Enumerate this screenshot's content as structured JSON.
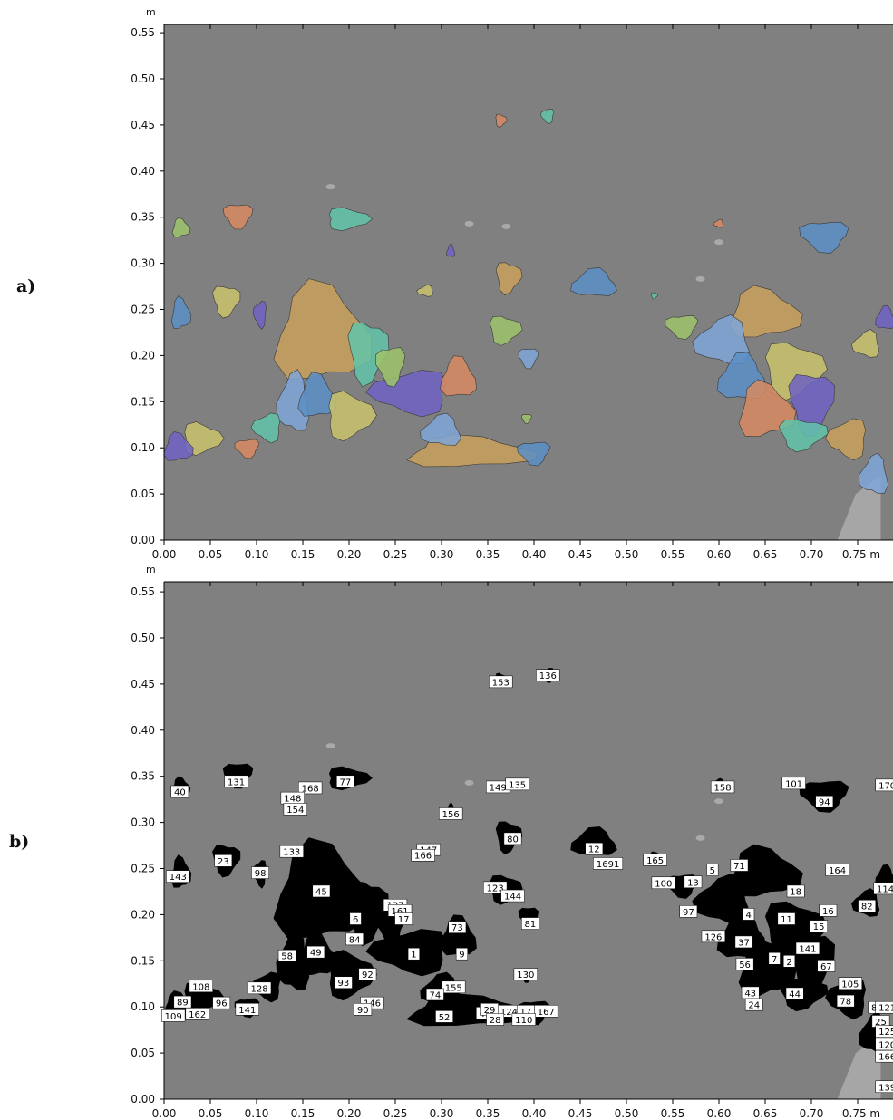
{
  "panels": [
    {
      "label": "a)",
      "unit": "m",
      "x_ticks": [
        "0.00",
        "0.05",
        "0.10",
        "0.15",
        "0.20",
        "0.25",
        "0.30",
        "0.35",
        "0.40",
        "0.45",
        "0.50",
        "0.55",
        "0.60",
        "0.65",
        "0.70",
        "0.75"
      ],
      "y_ticks": [
        "0.00",
        "0.05",
        "0.10",
        "0.15",
        "0.20",
        "0.25",
        "0.30",
        "0.35",
        "0.40",
        "0.45",
        "0.50",
        "0.55"
      ],
      "x_end_label": "0.75 m",
      "background_color": "#808080",
      "segment_colors": [
        "#5b8fc7",
        "#c9c36b",
        "#6f62c4",
        "#d88a62",
        "#62c4a9",
        "#9dc46b",
        "#c9a05b",
        "#7ea6d8"
      ]
    },
    {
      "label": "b)",
      "unit": "m",
      "x_ticks": [
        "0.00",
        "0.05",
        "0.10",
        "0.15",
        "0.20",
        "0.25",
        "0.30",
        "0.35",
        "0.40",
        "0.45",
        "0.50",
        "0.55",
        "0.60",
        "0.65",
        "0.70",
        "0.75"
      ],
      "y_ticks": [
        "0.00",
        "0.05",
        "0.10",
        "0.15",
        "0.20",
        "0.25",
        "0.30",
        "0.35",
        "0.40",
        "0.45",
        "0.50",
        "0.55"
      ],
      "x_end_label": "0.75 m",
      "background_color": "#808080",
      "blob_color": "#000000",
      "region_labels": [
        {
          "t": "136",
          "x": 0.415,
          "y": 0.459
        },
        {
          "t": "153",
          "x": 0.364,
          "y": 0.452
        },
        {
          "t": "40",
          "x": 0.017,
          "y": 0.333
        },
        {
          "t": "131",
          "x": 0.078,
          "y": 0.344
        },
        {
          "t": "77",
          "x": 0.196,
          "y": 0.344
        },
        {
          "t": "168",
          "x": 0.158,
          "y": 0.337
        },
        {
          "t": "148",
          "x": 0.139,
          "y": 0.326
        },
        {
          "t": "154",
          "x": 0.142,
          "y": 0.314
        },
        {
          "t": "149",
          "x": 0.361,
          "y": 0.338
        },
        {
          "t": "135",
          "x": 0.382,
          "y": 0.341
        },
        {
          "t": "158",
          "x": 0.604,
          "y": 0.338
        },
        {
          "t": "101",
          "x": 0.681,
          "y": 0.342
        },
        {
          "t": "170",
          "x": 0.782,
          "y": 0.34
        },
        {
          "t": "94",
          "x": 0.714,
          "y": 0.322
        },
        {
          "t": "156",
          "x": 0.31,
          "y": 0.309
        },
        {
          "t": "80",
          "x": 0.377,
          "y": 0.282
        },
        {
          "t": "133",
          "x": 0.138,
          "y": 0.268
        },
        {
          "t": "147",
          "x": 0.286,
          "y": 0.27
        },
        {
          "t": "166",
          "x": 0.28,
          "y": 0.264
        },
        {
          "t": "12",
          "x": 0.465,
          "y": 0.271
        },
        {
          "t": "1691",
          "x": 0.48,
          "y": 0.255
        },
        {
          "t": "165",
          "x": 0.531,
          "y": 0.259
        },
        {
          "t": "23",
          "x": 0.064,
          "y": 0.258
        },
        {
          "t": "98",
          "x": 0.104,
          "y": 0.245
        },
        {
          "t": "143",
          "x": 0.015,
          "y": 0.241
        },
        {
          "t": "164",
          "x": 0.728,
          "y": 0.248
        },
        {
          "t": "5",
          "x": 0.593,
          "y": 0.248
        },
        {
          "t": "71",
          "x": 0.622,
          "y": 0.253
        },
        {
          "t": "100",
          "x": 0.54,
          "y": 0.234
        },
        {
          "t": "13",
          "x": 0.572,
          "y": 0.235
        },
        {
          "t": "45",
          "x": 0.17,
          "y": 0.225
        },
        {
          "t": "123",
          "x": 0.358,
          "y": 0.229
        },
        {
          "t": "144",
          "x": 0.377,
          "y": 0.22
        },
        {
          "t": "18",
          "x": 0.683,
          "y": 0.225
        },
        {
          "t": "114",
          "x": 0.78,
          "y": 0.228
        },
        {
          "t": "82",
          "x": 0.76,
          "y": 0.209
        },
        {
          "t": "137",
          "x": 0.25,
          "y": 0.21
        },
        {
          "t": "161",
          "x": 0.255,
          "y": 0.204
        },
        {
          "t": "17",
          "x": 0.259,
          "y": 0.195
        },
        {
          "t": "6",
          "x": 0.207,
          "y": 0.195
        },
        {
          "t": "81",
          "x": 0.396,
          "y": 0.19
        },
        {
          "t": "97",
          "x": 0.567,
          "y": 0.203
        },
        {
          "t": "4",
          "x": 0.632,
          "y": 0.2
        },
        {
          "t": "11",
          "x": 0.673,
          "y": 0.195
        },
        {
          "t": "16",
          "x": 0.718,
          "y": 0.204
        },
        {
          "t": "15",
          "x": 0.708,
          "y": 0.187
        },
        {
          "t": "73",
          "x": 0.317,
          "y": 0.186
        },
        {
          "t": "84",
          "x": 0.206,
          "y": 0.173
        },
        {
          "t": "126",
          "x": 0.594,
          "y": 0.176
        },
        {
          "t": "37",
          "x": 0.627,
          "y": 0.17
        },
        {
          "t": "49",
          "x": 0.164,
          "y": 0.159
        },
        {
          "t": "1",
          "x": 0.27,
          "y": 0.157
        },
        {
          "t": "9",
          "x": 0.322,
          "y": 0.157
        },
        {
          "t": "58",
          "x": 0.133,
          "y": 0.155
        },
        {
          "t": "141",
          "x": 0.696,
          "y": 0.163
        },
        {
          "t": "7",
          "x": 0.66,
          "y": 0.152
        },
        {
          "t": "2",
          "x": 0.676,
          "y": 0.149
        },
        {
          "t": "56",
          "x": 0.628,
          "y": 0.146
        },
        {
          "t": "67",
          "x": 0.716,
          "y": 0.144
        },
        {
          "t": "130",
          "x": 0.391,
          "y": 0.135
        },
        {
          "t": "92",
          "x": 0.22,
          "y": 0.135
        },
        {
          "t": "93",
          "x": 0.194,
          "y": 0.126
        },
        {
          "t": "108",
          "x": 0.04,
          "y": 0.122
        },
        {
          "t": "128",
          "x": 0.103,
          "y": 0.12
        },
        {
          "t": "155",
          "x": 0.313,
          "y": 0.121
        },
        {
          "t": "105",
          "x": 0.742,
          "y": 0.125
        },
        {
          "t": "43",
          "x": 0.634,
          "y": 0.115
        },
        {
          "t": "44",
          "x": 0.682,
          "y": 0.114
        },
        {
          "t": "74",
          "x": 0.293,
          "y": 0.113
        },
        {
          "t": "24",
          "x": 0.638,
          "y": 0.102
        },
        {
          "t": "89",
          "x": 0.02,
          "y": 0.105
        },
        {
          "t": "96",
          "x": 0.062,
          "y": 0.104
        },
        {
          "t": "146",
          "x": 0.225,
          "y": 0.104
        },
        {
          "t": "90",
          "x": 0.215,
          "y": 0.097
        },
        {
          "t": "78",
          "x": 0.737,
          "y": 0.106
        },
        {
          "t": "85",
          "x": 0.771,
          "y": 0.099
        },
        {
          "t": "121",
          "x": 0.782,
          "y": 0.099
        },
        {
          "t": "141",
          "x": 0.09,
          "y": 0.097
        },
        {
          "t": "162",
          "x": 0.036,
          "y": 0.092
        },
        {
          "t": "109",
          "x": 0.01,
          "y": 0.09
        },
        {
          "t": "124",
          "x": 0.373,
          "y": 0.095
        },
        {
          "t": "17",
          "x": 0.391,
          "y": 0.095
        },
        {
          "t": "167",
          "x": 0.413,
          "y": 0.095
        },
        {
          "t": "41",
          "x": 0.347,
          "y": 0.093
        },
        {
          "t": "29",
          "x": 0.352,
          "y": 0.097
        },
        {
          "t": "52",
          "x": 0.303,
          "y": 0.089
        },
        {
          "t": "28",
          "x": 0.358,
          "y": 0.086
        },
        {
          "t": "110",
          "x": 0.389,
          "y": 0.086
        },
        {
          "t": "25",
          "x": 0.775,
          "y": 0.084
        },
        {
          "t": "125",
          "x": 0.782,
          "y": 0.073
        },
        {
          "t": "120",
          "x": 0.782,
          "y": 0.059
        },
        {
          "t": "166",
          "x": 0.782,
          "y": 0.046
        },
        {
          "t": "139",
          "x": 0.782,
          "y": 0.013
        }
      ]
    }
  ]
}
